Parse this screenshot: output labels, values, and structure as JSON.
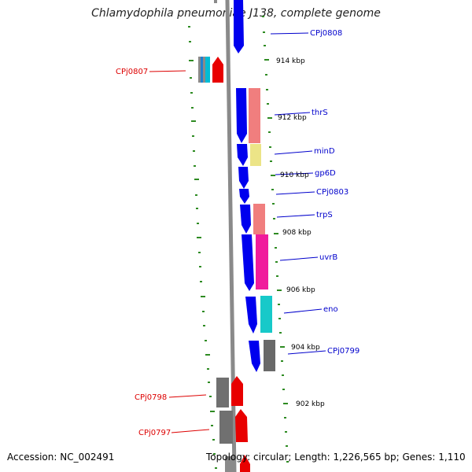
{
  "title": "Chlamydophila pneumoniae J138, complete genome",
  "footer": {
    "accession": "Accession: NC_002491",
    "summary": "Topology: circular; Length: 1,226,565 bp; Genes: 1,110"
  },
  "colors": {
    "backbone": "#8a8a8a",
    "tick": "#2e8b22",
    "forward_gene": "#0000ee",
    "reverse_gene_label": "#dd0000",
    "label_blue": "#0000cc"
  },
  "scale_labels": [
    "914 kbp",
    "912 kbp",
    "910 kbp",
    "908 kbp",
    "906 kbp",
    "904 kbp",
    "902 kbp"
  ],
  "gene_labels": [
    "CPj0808",
    "CPj0807",
    "thrS",
    "minD",
    "gp6D",
    "CPj0803",
    "trpS",
    "uvrB",
    "eno",
    "CPj0799",
    "CPj0798",
    "CPj0797"
  ]
}
